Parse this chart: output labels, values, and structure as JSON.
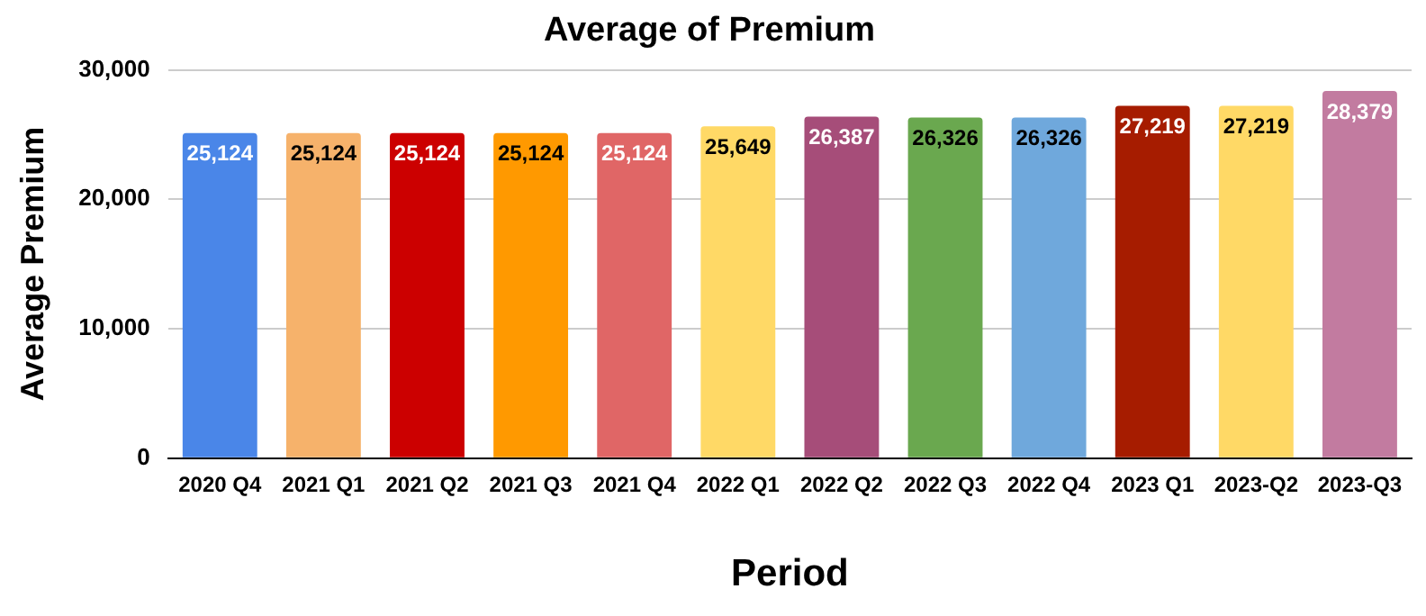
{
  "chart_data": {
    "type": "bar",
    "title": "Average of Premium",
    "xlabel": "Period",
    "ylabel": "Average Premium",
    "categories": [
      "2020 Q4",
      "2021 Q1",
      "2021 Q2",
      "2021 Q3",
      "2021 Q4",
      "2022 Q1",
      "2022 Q2",
      "2022 Q3",
      "2022 Q4",
      "2023 Q1",
      "2023-Q2",
      "2023-Q3"
    ],
    "values": [
      25124,
      25124,
      25124,
      25124,
      25124,
      25649,
      26387,
      26326,
      26326,
      27219,
      27219,
      28379
    ],
    "colors": [
      "#4a86e8",
      "#f6b26b",
      "#cc0000",
      "#ff9900",
      "#e06666",
      "#ffd966",
      "#a64d79",
      "#6aa84f",
      "#6fa8dc",
      "#a61c00",
      "#ffd966",
      "#c27ba0"
    ],
    "value_labels": [
      "25,124",
      "25,124",
      "25,124",
      "25,124",
      "25,124",
      "25,649",
      "26,387",
      "26,326",
      "26,326",
      "27,219",
      "27,219",
      "28,379"
    ],
    "ylim": [
      0,
      30000
    ],
    "yticks": [
      0,
      {
        "value": 10000,
        "label": "10,000"
      },
      {
        "value": 20000,
        "label": "20,000"
      },
      {
        "value": 30000,
        "label": "30,000"
      }
    ],
    "grid": "y",
    "legend": false
  }
}
